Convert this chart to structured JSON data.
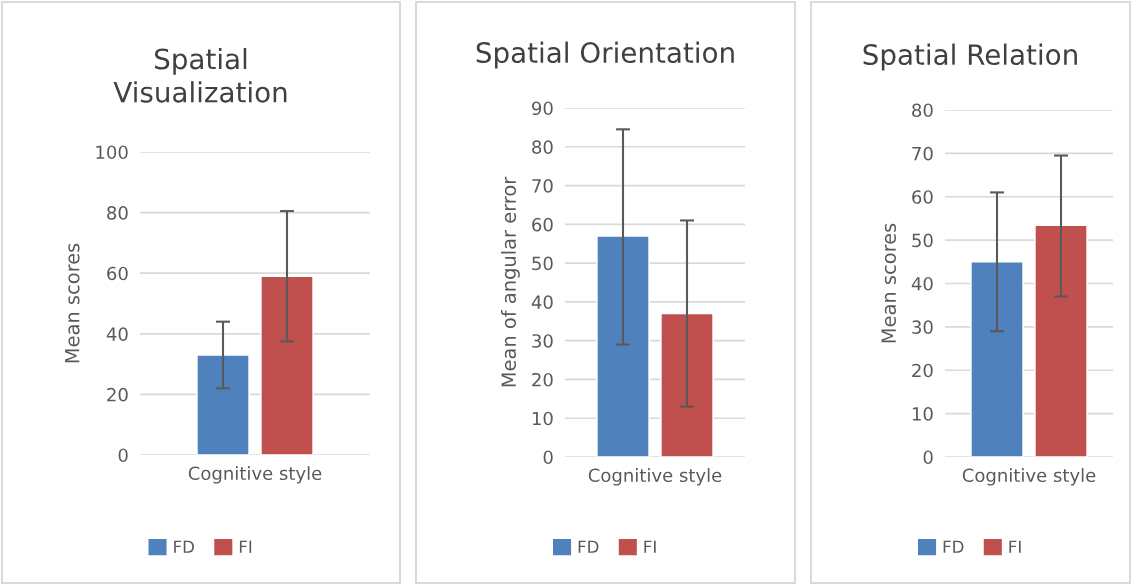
{
  "chart_data": [
    {
      "type": "bar",
      "title": "Spatial\nVisualization",
      "ylabel": "Mean scores",
      "categories": [
        "Cognitive style"
      ],
      "series": [
        {
          "name": "FD",
          "color": "#4f81bd",
          "values": [
            33
          ],
          "errors": [
            [
              22,
              44
            ]
          ]
        },
        {
          "name": "FI",
          "color": "#c0504d",
          "values": [
            59
          ],
          "errors": [
            [
              37.5,
              80.5
            ]
          ]
        }
      ],
      "ylim": [
        0,
        100
      ],
      "yticks": [
        0,
        20,
        40,
        60,
        80,
        100
      ],
      "grid": "y",
      "legend": "bottom"
    },
    {
      "type": "bar",
      "title": "Spatial Orientation",
      "ylabel": "Mean of angular error",
      "categories": [
        "Cognitive style"
      ],
      "series": [
        {
          "name": "FD",
          "color": "#4f81bd",
          "values": [
            57
          ],
          "errors": [
            [
              29,
              84.5
            ]
          ]
        },
        {
          "name": "FI",
          "color": "#c0504d",
          "values": [
            37
          ],
          "errors": [
            [
              13,
              61
            ]
          ]
        }
      ],
      "ylim": [
        0,
        90
      ],
      "yticks": [
        0,
        10,
        20,
        30,
        40,
        50,
        60,
        70,
        80,
        90
      ],
      "grid": "y",
      "legend": "bottom"
    },
    {
      "type": "bar",
      "title": "Spatial Relation",
      "ylabel": "Mean scores",
      "categories": [
        "Cognitive style"
      ],
      "series": [
        {
          "name": "FD",
          "color": "#4f81bd",
          "values": [
            45
          ],
          "errors": [
            [
              29,
              61
            ]
          ]
        },
        {
          "name": "FI",
          "color": "#c0504d",
          "values": [
            53.4
          ],
          "errors": [
            [
              37,
              69.5
            ]
          ]
        }
      ],
      "ylim": [
        0,
        80
      ],
      "yticks": [
        0,
        10,
        20,
        30,
        40,
        50,
        60,
        70,
        80
      ],
      "grid": "y",
      "legend": "bottom"
    }
  ]
}
